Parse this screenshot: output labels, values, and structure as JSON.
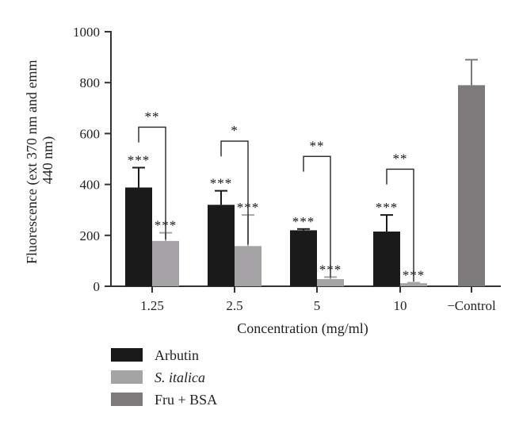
{
  "chart_data": {
    "type": "bar",
    "title": "",
    "xlabel": "Concentration (mg/ml)",
    "ylabel": "Fluorescence (ext 370 nm and emm 440 nm)",
    "ylabel_lines": [
      "Fluorescence (ext 370 nm and emm",
      "440 nm)"
    ],
    "ylim": [
      0,
      1000
    ],
    "yticks": [
      "0",
      "200",
      "400",
      "600",
      "800",
      "1000"
    ],
    "categories": [
      "1.25",
      "2.5",
      "5",
      "10",
      "−Control"
    ],
    "series": [
      {
        "name": "Arbutin",
        "color": "#1a1a1a",
        "values": [
          388,
          320,
          220,
          215,
          null
        ],
        "errors": [
          78,
          55,
          5,
          65,
          null
        ],
        "significance": [
          "***",
          "***",
          "***",
          "***",
          null
        ]
      },
      {
        "name": "S. italica",
        "italic": true,
        "color": "#a6a3a6",
        "values": [
          178,
          158,
          28,
          12,
          null
        ],
        "errors": [
          32,
          122,
          8,
          2,
          null
        ],
        "significance": [
          "***",
          "***",
          "***",
          "***",
          null
        ]
      },
      {
        "name": "Fru + BSA",
        "color": "#7d7a7c",
        "values": [
          null,
          null,
          null,
          null,
          790
        ],
        "errors": [
          null,
          null,
          null,
          null,
          100
        ],
        "significance": [
          null,
          null,
          null,
          null,
          null
        ]
      }
    ],
    "comparisons": [
      {
        "category": "1.25",
        "label": "**",
        "level": 625
      },
      {
        "category": "2.5",
        "label": "*",
        "level": 570
      },
      {
        "category": "5",
        "label": "**",
        "level": 510
      },
      {
        "category": "10",
        "label": "**",
        "level": 460
      }
    ],
    "legend": {
      "position": "bottom-left",
      "entries": [
        "Arbutin",
        "S. italica",
        "Fru + BSA"
      ]
    },
    "grid": false
  }
}
